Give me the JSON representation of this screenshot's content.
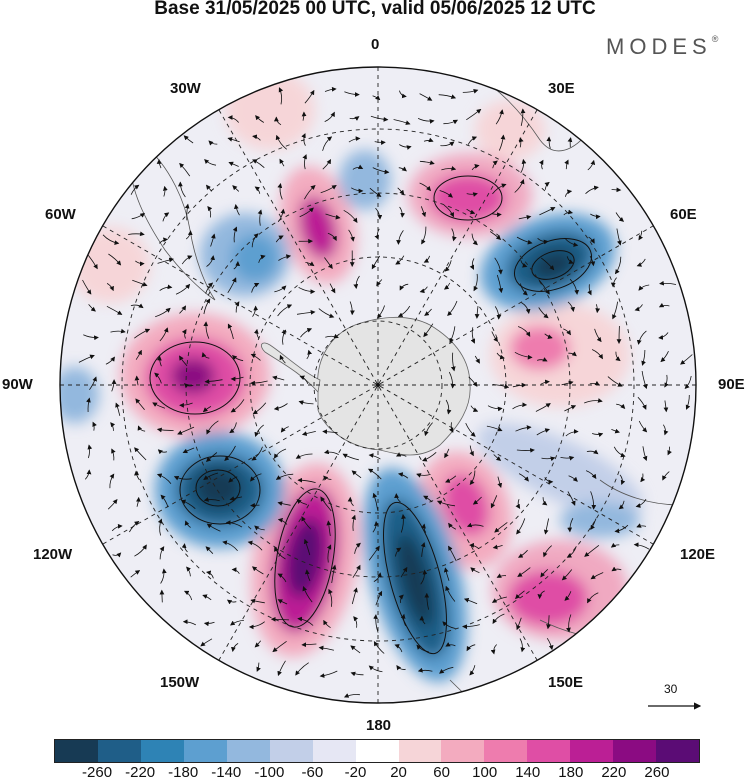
{
  "title": "Base 31/05/2025 00 UTC, valid 05/06/2025 12 UTC",
  "brand": "MODES",
  "brand_mark": "®",
  "longitude_labels": {
    "lon_0": "0",
    "lon_30e": "30E",
    "lon_60e": "60E",
    "lon_90e": "90E",
    "lon_120e": "120E",
    "lon_150e": "150E",
    "lon_180": "180",
    "lon_150w": "150W",
    "lon_120w": "120W",
    "lon_90w": "90W",
    "lon_60w": "60W",
    "lon_30w": "30W"
  },
  "vector_scale": {
    "value": "30",
    "icon": "right-arrow-icon"
  },
  "colorbar": {
    "colors": [
      "#173a54",
      "#1f5e88",
      "#2e83b5",
      "#5d9fd0",
      "#93b8de",
      "#c2cfe8",
      "#e6e7f4",
      "#ffffff",
      "#f6d5d8",
      "#f3abbf",
      "#ee7cae",
      "#df4ea5",
      "#bb1f95",
      "#8b0b82",
      "#5b0c75"
    ],
    "ticks": [
      "-260",
      "-220",
      "-180",
      "-140",
      "-100",
      "-60",
      "-20",
      "20",
      "60",
      "100",
      "140",
      "180",
      "220",
      "260"
    ]
  }
}
